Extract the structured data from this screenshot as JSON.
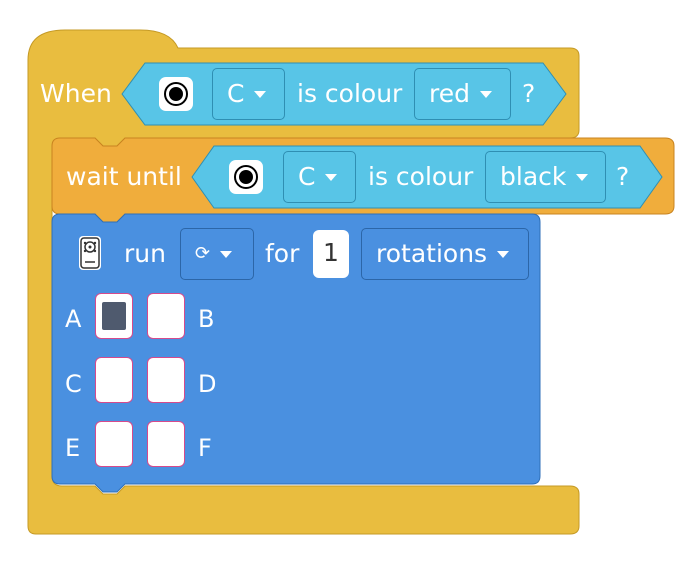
{
  "when_block": {
    "label": "When",
    "condition": {
      "port": "C",
      "text": "is colour",
      "colour": "red",
      "question": "?"
    }
  },
  "wait_block": {
    "label": "wait until",
    "condition": {
      "port": "C",
      "text": "is colour",
      "colour": "black",
      "question": "?"
    }
  },
  "motor_block": {
    "run_label": "run",
    "direction_icon": "⟳",
    "for_label": "for",
    "amount": "1",
    "unit": "rotations",
    "ports": [
      {
        "letter": "A",
        "selected": true
      },
      {
        "letter": "B",
        "selected": false
      },
      {
        "letter": "C",
        "selected": false
      },
      {
        "letter": "D",
        "selected": false
      },
      {
        "letter": "E",
        "selected": false
      },
      {
        "letter": "F",
        "selected": false
      }
    ]
  },
  "colors": {
    "event_yellow": "#e9bd3f",
    "control_orange": "#f0ad3c",
    "sensor_blue": "#58c5e7",
    "motor_blue": "#4a90e0"
  }
}
